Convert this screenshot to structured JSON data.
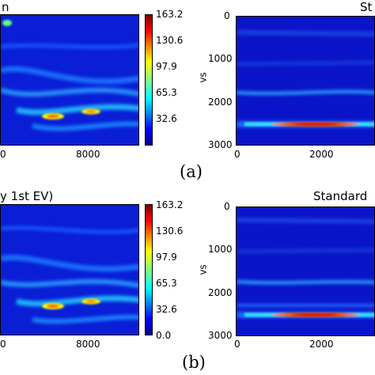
{
  "figure": {
    "row_a": {
      "caption": "(a)",
      "left": {
        "title": "n",
        "x_ticks": [
          "0",
          "8000"
        ]
      },
      "colorbar": {
        "ticks": [
          "163.2",
          "130.6",
          "97.9",
          "65.3",
          "32.6"
        ]
      },
      "right": {
        "title": "St",
        "ylabel": "vs",
        "y_ticks": [
          "0",
          "1000",
          "2000",
          "3000"
        ],
        "x_ticks": [
          "0",
          "2000"
        ]
      }
    },
    "row_b": {
      "caption": "(b)",
      "left": {
        "title": "y 1st EV)",
        "x_ticks": [
          "0",
          "8000"
        ]
      },
      "colorbar": {
        "ticks": [
          "163.2",
          "130.6",
          "97.9",
          "65.3",
          "32.6",
          "0.0"
        ]
      },
      "right": {
        "title": "Standard",
        "ylabel": "vs",
        "y_ticks": [
          "0",
          "1000",
          "2000",
          "3000"
        ],
        "x_ticks": [
          "0",
          "2000"
        ]
      }
    }
  },
  "chart_data": [
    {
      "type": "heatmap",
      "panel": "a-left",
      "colormap": "jet",
      "vmin": 0,
      "vmax": 163.2,
      "title": "n",
      "x_tick_labels": [
        "0",
        "8000"
      ]
    },
    {
      "type": "heatmap",
      "panel": "a-right",
      "colormap": "jet",
      "vmin": 0,
      "vmax": 163.2,
      "title": "St",
      "ylabel": "vs",
      "ylim": [
        3000,
        0
      ],
      "y_tick_labels": [
        "0",
        "1000",
        "2000",
        "3000"
      ],
      "x_tick_labels": [
        "0",
        "2000"
      ]
    },
    {
      "type": "heatmap",
      "panel": "b-left",
      "colormap": "jet",
      "vmin": 0,
      "vmax": 163.2,
      "title": "y 1st EV)",
      "x_tick_labels": [
        "0",
        "8000"
      ]
    },
    {
      "type": "heatmap",
      "panel": "b-right",
      "colormap": "jet",
      "vmin": 0,
      "vmax": 163.2,
      "title": "Standard",
      "ylabel": "vs",
      "ylim": [
        3000,
        0
      ],
      "y_tick_labels": [
        "0",
        "1000",
        "2000",
        "3000"
      ],
      "x_tick_labels": [
        "0",
        "2000"
      ]
    }
  ]
}
